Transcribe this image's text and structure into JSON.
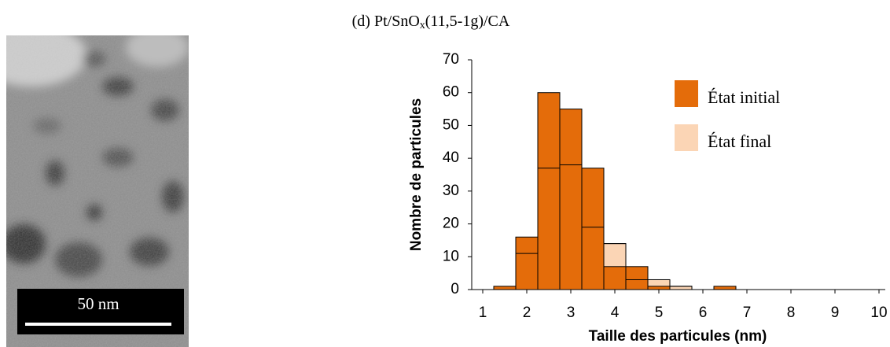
{
  "image": {
    "scale_bar": "50 nm"
  },
  "chart_data": {
    "type": "histogram",
    "title": {
      "main": "(d) Pt/SnO",
      "subscript": "x",
      "rest": "(11,5-1g)/CA"
    },
    "x_label": "Taille des particules (nm)",
    "y_label": "Nombre de particules",
    "bins": [
      1.25,
      1.75,
      2.25,
      2.75,
      3.25,
      3.75,
      4.25,
      4.75,
      5.25,
      5.75,
      6.25,
      6.75
    ],
    "series": [
      {
        "name": "État initial",
        "color": "#e46c0a",
        "values": [
          1,
          16,
          60,
          55,
          37,
          7,
          7,
          1,
          0,
          0,
          1
        ]
      },
      {
        "name": "État final",
        "color": "#fbd5b5",
        "values": [
          0,
          11,
          37,
          38,
          19,
          14,
          3,
          3,
          1,
          0,
          0
        ]
      }
    ],
    "xlim": [
      0.75,
      10.25
    ],
    "xticks": [
      1,
      2,
      3,
      4,
      5,
      6,
      7,
      8,
      9,
      10
    ],
    "ylim": [
      0,
      70
    ],
    "yticks": [
      0,
      10,
      20,
      30,
      40,
      50,
      60,
      70
    ],
    "legend": "upper right"
  }
}
